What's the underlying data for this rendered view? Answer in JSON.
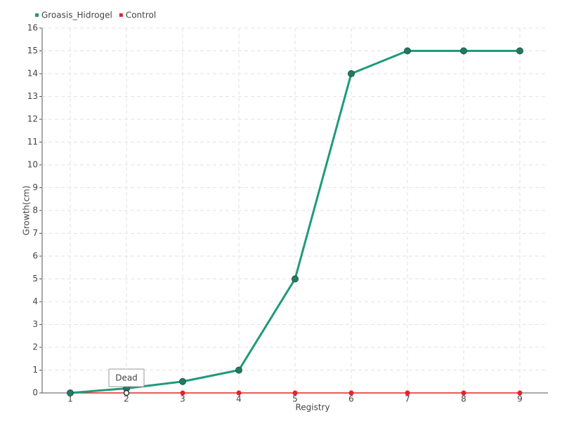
{
  "chart_data": {
    "type": "line",
    "x_label": "Registry",
    "y_label": "Growth(cm)",
    "categories": [
      "1",
      "2",
      "3",
      "4",
      "5",
      "6",
      "7",
      "8",
      "9"
    ],
    "series": [
      {
        "name": "Groasis_Hidrogel",
        "color": "#1f9a7b",
        "marker_color": "#237a5f",
        "values": [
          0,
          0.2,
          0.5,
          1,
          5,
          14,
          15,
          15,
          15
        ]
      },
      {
        "name": "Control",
        "color": "#e8202a",
        "marker_color": "#e8202a",
        "values": [
          0,
          0,
          0,
          0,
          0,
          0,
          0,
          0,
          0
        ]
      }
    ],
    "ylim": [
      0,
      16
    ],
    "yticks": [
      0,
      1,
      2,
      3,
      4,
      5,
      6,
      7,
      8,
      9,
      10,
      11,
      12,
      13,
      14,
      15,
      16
    ],
    "grid": true,
    "legend": "top-left",
    "annotations": [
      {
        "text": "Dead",
        "x": "2",
        "series": "Control"
      }
    ]
  }
}
